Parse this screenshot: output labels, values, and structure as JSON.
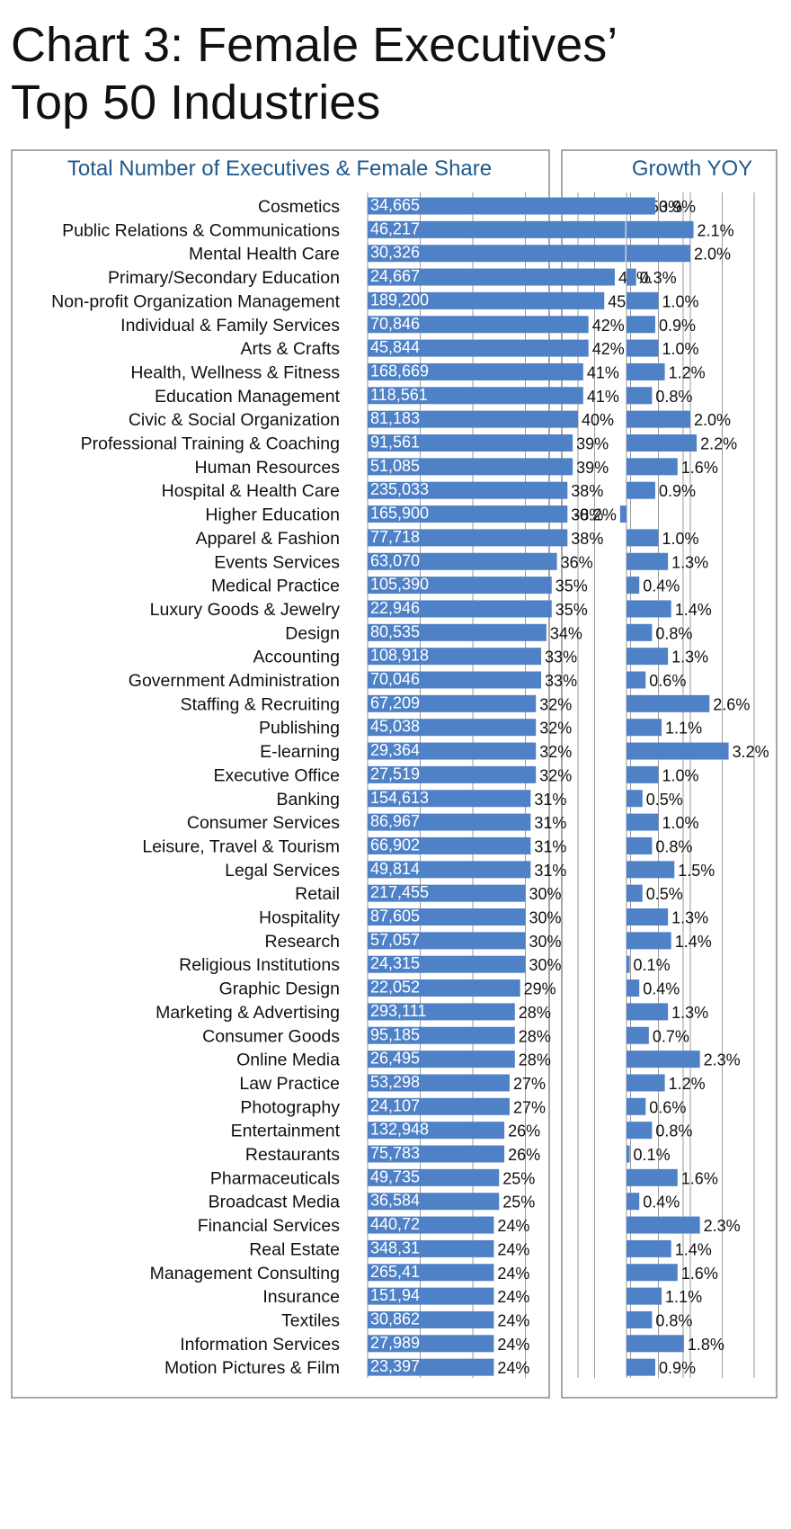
{
  "title_line1": "Chart 3: Female Executives’",
  "title_line2": "Top 50 Industries",
  "chart_data": [
    {
      "type": "bar",
      "orientation": "horizontal",
      "title": "Total Number of Executives  & Female Share",
      "categories": [
        "Cosmetics",
        "Public Relations & Communications",
        "Mental Health Care",
        "Primary/Secondary Education",
        "Non-profit Organization Management",
        "Individual & Family Services",
        "Arts & Crafts",
        "Health, Wellness & Fitness",
        "Education Management",
        "Civic & Social Organization",
        "Professional Training & Coaching",
        "Human Resources",
        "Hospital & Health Care",
        "Higher Education",
        "Apparel & Fashion",
        "Events Services",
        "Medical Practice",
        "Luxury Goods & Jewelry",
        "Design",
        "Accounting",
        "Government Administration",
        "Staffing & Recruiting",
        "Publishing",
        "E-learning",
        "Executive Office",
        "Banking",
        "Consumer Services",
        "Leisure, Travel & Tourism",
        "Legal Services",
        "Retail",
        "Hospitality",
        "Research",
        "Religious Institutions",
        "Graphic Design",
        "Marketing & Advertising",
        "Consumer Goods",
        "Online Media",
        "Law Practice",
        "Photography",
        "Entertainment",
        "Restaurants",
        "Pharmaceuticals",
        "Broadcast Media",
        "Financial Services",
        "Real Estate",
        "Management Consulting",
        "Insurance",
        "Textiles",
        "Information Services",
        "Motion Pictures & Film"
      ],
      "values": [
        53,
        49,
        49,
        47,
        45,
        42,
        42,
        41,
        41,
        40,
        39,
        39,
        38,
        38,
        38,
        36,
        35,
        35,
        34,
        33,
        33,
        32,
        32,
        32,
        32,
        31,
        31,
        31,
        31,
        30,
        30,
        30,
        30,
        29,
        28,
        28,
        28,
        27,
        27,
        26,
        26,
        25,
        25,
        24,
        24,
        24,
        24,
        24,
        24,
        24
      ],
      "value_labels": [
        "53%",
        "49%",
        "49%",
        "47%",
        "45%",
        "42%",
        "42%",
        "41%",
        "41%",
        "40%",
        "39%",
        "39%",
        "38%",
        "38%",
        "38%",
        "36%",
        "35%",
        "35%",
        "34%",
        "33%",
        "33%",
        "32%",
        "32%",
        "32%",
        "32%",
        "31%",
        "31%",
        "31%",
        "31%",
        "30%",
        "30%",
        "30%",
        "30%",
        "29%",
        "28%",
        "28%",
        "28%",
        "27%",
        "27%",
        "26%",
        "26%",
        "25%",
        "25%",
        "24%",
        "24%",
        "24%",
        "24%",
        "24%",
        "24%",
        "24%"
      ],
      "count_labels": [
        "34,665",
        "46,217",
        "30,326",
        "24,667",
        "189,200",
        "70,846",
        "45,844",
        "168,669",
        "118,561",
        "81,183",
        "91,561",
        "51,085",
        "235,033",
        "165,900",
        "77,718",
        "63,070",
        "105,390",
        "22,946",
        "80,535",
        "108,918",
        "70,046",
        "67,209",
        "45,038",
        "29,364",
        "27,519",
        "154,613",
        "86,967",
        "66,902",
        "49,814",
        "217,455",
        "87,605",
        "57,057",
        "24,315",
        "22,052",
        "293,111",
        "95,185",
        "26,495",
        "53,298",
        "24,107",
        "132,948",
        "75,783",
        "49,735",
        "36,584",
        "440,72",
        "348,31",
        "265,41",
        "151,94",
        "30,862",
        "27,989",
        "23,397"
      ],
      "xlim": [
        0,
        60
      ],
      "grid": true,
      "bar_color": "#4f81c7"
    },
    {
      "type": "bar",
      "orientation": "horizontal",
      "title": "Growth YOY",
      "values": [
        0.9,
        2.1,
        2.0,
        0.3,
        1.0,
        0.9,
        1.0,
        1.2,
        0.8,
        2.0,
        2.2,
        1.6,
        0.9,
        -0.2,
        1.0,
        1.3,
        0.4,
        1.4,
        0.8,
        1.3,
        0.6,
        2.6,
        1.1,
        3.2,
        1.0,
        0.5,
        1.0,
        0.8,
        1.5,
        0.5,
        1.3,
        1.4,
        0.1,
        0.4,
        1.3,
        0.7,
        2.3,
        1.2,
        0.6,
        0.8,
        0.1,
        1.6,
        0.4,
        2.3,
        1.4,
        1.6,
        1.1,
        0.8,
        1.8,
        0.9
      ],
      "value_labels": [
        "0.9%",
        "2.1%",
        "2.0%",
        "0.3%",
        "1.0%",
        "0.9%",
        "1.0%",
        "1.2%",
        "0.8%",
        "2.0%",
        "2.2%",
        "1.6%",
        "0.9%",
        "-0.2%",
        "1.0%",
        "1.3%",
        "0.4%",
        "1.4%",
        "0.8%",
        "1.3%",
        "0.6%",
        "2.6%",
        "1.1%",
        "3.2%",
        "1.0%",
        "0.5%",
        "1.0%",
        "0.8%",
        "1.5%",
        "0.5%",
        "1.3%",
        "1.4%",
        "0.1%",
        "0.4%",
        "1.3%",
        "0.7%",
        "2.3%",
        "1.2%",
        "0.6%",
        "0.8%",
        "0.1%",
        "1.6%",
        "0.4%",
        "2.3%",
        "1.4%",
        "1.6%",
        "1.1%",
        "0.8%",
        "1.8%",
        "0.9%"
      ],
      "xlim": [
        -1,
        4
      ],
      "grid": true,
      "bar_color": "#4f81c7"
    }
  ]
}
